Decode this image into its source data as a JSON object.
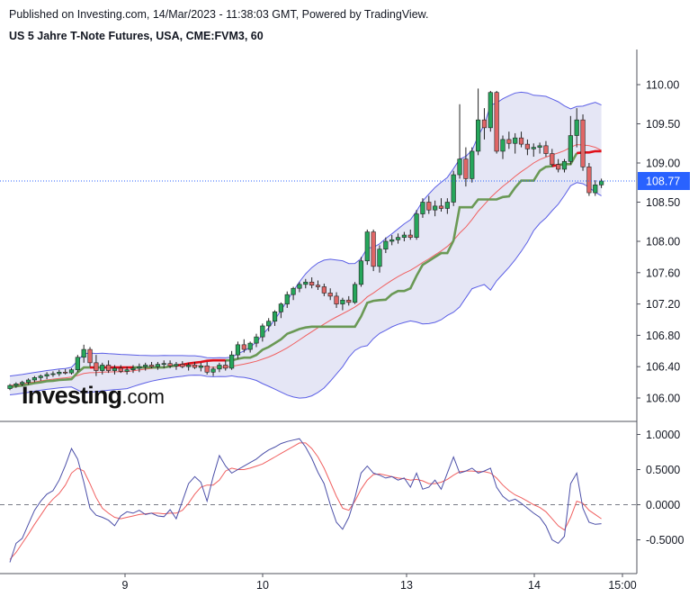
{
  "header": {
    "published": "Published on Investing.com, 14/Mar/2023 - 11:38:03 GMT, Powered by TradingView.",
    "instrument": "US 5 Jahre T-Note Futures, USA, CME:FVM3, 60"
  },
  "logo": {
    "brand": "Investing",
    "domain": ".com"
  },
  "colors": {
    "up": "#26a65b",
    "down": "#e06666",
    "band_fill": "#e5e6f5",
    "band_line": "#5b5fe6",
    "ma": "#f06060",
    "kijun_green": "#6a9955",
    "kijun_red": "#e0101a",
    "stoch_k": "#4b4fa8",
    "stoch_d": "#f06060",
    "last_price_bg": "#2962ff"
  },
  "chart_data": [
    {
      "type": "candlestick",
      "title": "US 5 Jahre T-Note Futures, USA, CME:FVM3, 60",
      "xlabel": "",
      "ylabel": "",
      "x_ticks": [
        "9",
        "10",
        "13",
        "14",
        "15:00"
      ],
      "y_ticks": [
        "110.00",
        "109.50",
        "109.00",
        "108.50",
        "108.00",
        "107.60",
        "107.20",
        "106.80",
        "106.40",
        "106.00"
      ],
      "ylim": [
        105.75,
        110.3
      ],
      "last_price": "108.77",
      "grid": false,
      "ohlc": [
        [
          106.12,
          106.18,
          106.1,
          106.16
        ],
        [
          106.16,
          106.2,
          106.13,
          106.18
        ],
        [
          106.18,
          106.22,
          106.15,
          106.2
        ],
        [
          106.2,
          106.25,
          106.17,
          106.23
        ],
        [
          106.23,
          106.28,
          106.2,
          106.26
        ],
        [
          106.26,
          106.3,
          106.22,
          106.28
        ],
        [
          106.28,
          106.33,
          106.24,
          106.3
        ],
        [
          106.3,
          106.34,
          106.27,
          106.31
        ],
        [
          106.31,
          106.36,
          106.28,
          106.33
        ],
        [
          106.33,
          106.37,
          106.3,
          106.32
        ],
        [
          106.32,
          106.38,
          106.3,
          106.36
        ],
        [
          106.36,
          106.55,
          106.33,
          106.52
        ],
        [
          106.52,
          106.68,
          106.45,
          106.62
        ],
        [
          106.62,
          106.65,
          106.4,
          106.45
        ],
        [
          106.45,
          106.55,
          106.28,
          106.35
        ],
        [
          106.35,
          106.45,
          106.3,
          106.42
        ],
        [
          106.42,
          106.48,
          106.32,
          106.35
        ],
        [
          106.35,
          106.42,
          106.3,
          106.38
        ],
        [
          106.38,
          106.42,
          106.32,
          106.34
        ],
        [
          106.34,
          106.4,
          106.3,
          106.36
        ],
        [
          106.36,
          106.42,
          106.32,
          106.38
        ],
        [
          106.38,
          106.44,
          106.33,
          106.4
        ],
        [
          106.4,
          106.45,
          106.35,
          106.42
        ],
        [
          106.42,
          106.46,
          106.38,
          106.4
        ],
        [
          106.4,
          106.46,
          106.36,
          106.43
        ],
        [
          106.43,
          106.48,
          106.38,
          106.44
        ],
        [
          106.44,
          106.48,
          106.38,
          106.41
        ],
        [
          106.41,
          106.46,
          106.36,
          106.43
        ],
        [
          106.43,
          106.47,
          106.38,
          106.4
        ],
        [
          106.4,
          106.45,
          106.35,
          106.42
        ],
        [
          106.42,
          106.46,
          106.37,
          106.39
        ],
        [
          106.39,
          106.45,
          106.34,
          106.41
        ],
        [
          106.41,
          106.46,
          106.3,
          106.33
        ],
        [
          106.33,
          106.4,
          106.28,
          106.37
        ],
        [
          106.37,
          106.45,
          106.33,
          106.42
        ],
        [
          106.42,
          106.48,
          106.35,
          106.38
        ],
        [
          106.38,
          106.6,
          106.36,
          106.55
        ],
        [
          106.55,
          106.72,
          106.5,
          106.68
        ],
        [
          106.68,
          106.75,
          106.58,
          106.62
        ],
        [
          106.62,
          106.72,
          106.58,
          106.7
        ],
        [
          106.7,
          106.82,
          106.65,
          106.78
        ],
        [
          106.78,
          106.95,
          106.72,
          106.92
        ],
        [
          106.92,
          107.02,
          106.85,
          106.98
        ],
        [
          106.98,
          107.12,
          106.92,
          107.1
        ],
        [
          107.1,
          107.22,
          107.02,
          107.2
        ],
        [
          107.2,
          107.36,
          107.15,
          107.32
        ],
        [
          107.32,
          107.42,
          107.25,
          107.4
        ],
        [
          107.4,
          107.48,
          107.35,
          107.45
        ],
        [
          107.45,
          107.52,
          107.4,
          107.48
        ],
        [
          107.48,
          107.54,
          107.4,
          107.44
        ],
        [
          107.44,
          107.5,
          107.38,
          107.42
        ],
        [
          107.42,
          107.46,
          107.3,
          107.34
        ],
        [
          107.34,
          107.4,
          107.25,
          107.3
        ],
        [
          107.3,
          107.35,
          107.15,
          107.2
        ],
        [
          107.2,
          107.28,
          107.12,
          107.25
        ],
        [
          107.25,
          107.3,
          107.18,
          107.22
        ],
        [
          107.22,
          107.48,
          107.2,
          107.45
        ],
        [
          107.45,
          107.8,
          107.42,
          107.75
        ],
        [
          107.75,
          108.15,
          107.7,
          108.12
        ],
        [
          108.12,
          108.15,
          107.62,
          107.68
        ],
        [
          107.68,
          107.95,
          107.6,
          107.9
        ],
        [
          107.9,
          108.05,
          107.85,
          108.0
        ],
        [
          108.0,
          108.08,
          107.95,
          108.02
        ],
        [
          108.02,
          108.1,
          107.97,
          108.05
        ],
        [
          108.05,
          108.12,
          108.0,
          108.08
        ],
        [
          108.08,
          108.15,
          108.02,
          108.05
        ],
        [
          108.05,
          108.4,
          108.02,
          108.35
        ],
        [
          108.35,
          108.55,
          108.3,
          108.5
        ],
        [
          108.5,
          108.58,
          108.35,
          108.4
        ],
        [
          108.4,
          108.52,
          108.32,
          108.45
        ],
        [
          108.45,
          108.55,
          108.38,
          108.42
        ],
        [
          108.42,
          108.55,
          108.35,
          108.5
        ],
        [
          108.5,
          108.9,
          108.45,
          108.85
        ],
        [
          108.85,
          109.75,
          108.8,
          109.05
        ],
        [
          109.05,
          109.2,
          108.7,
          108.8
        ],
        [
          108.8,
          109.2,
          108.75,
          109.15
        ],
        [
          109.15,
          109.95,
          109.1,
          109.55
        ],
        [
          109.55,
          109.7,
          109.3,
          109.45
        ],
        [
          109.45,
          109.92,
          109.4,
          109.9
        ],
        [
          109.9,
          109.92,
          109.12,
          109.15
        ],
        [
          109.15,
          109.35,
          109.05,
          109.3
        ],
        [
          109.3,
          109.4,
          109.18,
          109.25
        ],
        [
          109.25,
          109.38,
          109.12,
          109.32
        ],
        [
          109.32,
          109.4,
          109.2,
          109.24
        ],
        [
          109.24,
          109.3,
          109.1,
          109.18
        ],
        [
          109.18,
          109.25,
          109.08,
          109.2
        ],
        [
          109.2,
          109.26,
          109.12,
          109.22
        ],
        [
          109.22,
          109.28,
          109.08,
          109.12
        ],
        [
          109.12,
          109.18,
          108.95,
          108.98
        ],
        [
          108.98,
          109.05,
          108.88,
          108.92
        ],
        [
          108.92,
          109.05,
          108.88,
          109.02
        ],
        [
          109.02,
          109.6,
          108.98,
          109.35
        ],
        [
          109.35,
          109.7,
          109.2,
          109.55
        ],
        [
          109.55,
          109.62,
          108.9,
          108.95
        ],
        [
          108.95,
          109.0,
          108.58,
          108.62
        ],
        [
          108.62,
          108.78,
          108.58,
          108.72
        ],
        [
          108.72,
          108.8,
          108.68,
          108.77
        ]
      ]
    },
    {
      "type": "line",
      "title": "",
      "xlabel": "",
      "ylabel": "",
      "y_ticks": [
        "1.0000",
        "0.5000",
        "0.0000",
        "-0.5000"
      ],
      "ylim": [
        -0.9,
        1.05
      ],
      "zero_line": 0.0,
      "series": [
        {
          "values": [
            -0.82,
            -0.55,
            -0.48,
            -0.28,
            -0.08,
            0.05,
            0.15,
            0.2,
            0.35,
            0.56,
            0.8,
            0.65,
            0.32,
            -0.05,
            -0.15,
            -0.18,
            -0.22,
            -0.3,
            -0.16,
            -0.1,
            -0.12,
            -0.08,
            -0.14,
            -0.12,
            -0.16,
            -0.17,
            -0.07,
            -0.2,
            0.05,
            0.3,
            0.4,
            0.32,
            0.05,
            0.4,
            0.7,
            0.55,
            0.45,
            0.5,
            0.55,
            0.6,
            0.65,
            0.72,
            0.78,
            0.82,
            0.87,
            0.9,
            0.92,
            0.94,
            0.82,
            0.66,
            0.46,
            0.3,
            0.0,
            -0.25,
            -0.35,
            -0.18,
            0.1,
            0.45,
            0.55,
            0.45,
            0.42,
            0.38,
            0.4,
            0.35,
            0.38,
            0.25,
            0.45,
            0.22,
            0.25,
            0.35,
            0.22,
            0.45,
            0.68,
            0.45,
            0.48,
            0.52,
            0.45,
            0.48,
            0.52,
            0.25,
            0.12,
            0.05,
            0.08,
            0.02,
            -0.05,
            -0.12,
            -0.18,
            -0.3,
            -0.5,
            -0.55,
            -0.45,
            0.3,
            0.45,
            -0.05,
            -0.25,
            -0.28,
            -0.27
          ]
        },
        {
          "values": [
            -0.78,
            -0.68,
            -0.55,
            -0.42,
            -0.28,
            -0.15,
            -0.02,
            0.08,
            0.16,
            0.28,
            0.45,
            0.52,
            0.48,
            0.3,
            0.1,
            -0.05,
            -0.12,
            -0.18,
            -0.2,
            -0.18,
            -0.16,
            -0.14,
            -0.13,
            -0.12,
            -0.12,
            -0.13,
            -0.12,
            -0.12,
            -0.08,
            0.02,
            0.15,
            0.25,
            0.28,
            0.28,
            0.35,
            0.48,
            0.52,
            0.5,
            0.5,
            0.52,
            0.55,
            0.58,
            0.63,
            0.68,
            0.73,
            0.78,
            0.83,
            0.88,
            0.88,
            0.8,
            0.68,
            0.52,
            0.32,
            0.12,
            -0.05,
            -0.08,
            0.05,
            0.22,
            0.35,
            0.43,
            0.44,
            0.42,
            0.4,
            0.38,
            0.37,
            0.35,
            0.36,
            0.34,
            0.3,
            0.3,
            0.32,
            0.36,
            0.42,
            0.47,
            0.48,
            0.48,
            0.47,
            0.47,
            0.45,
            0.38,
            0.28,
            0.2,
            0.14,
            0.1,
            0.05,
            0.0,
            -0.04,
            -0.1,
            -0.2,
            -0.3,
            -0.36,
            -0.18,
            0.05,
            0.02,
            -0.08,
            -0.14,
            -0.2
          ]
        }
      ]
    }
  ]
}
